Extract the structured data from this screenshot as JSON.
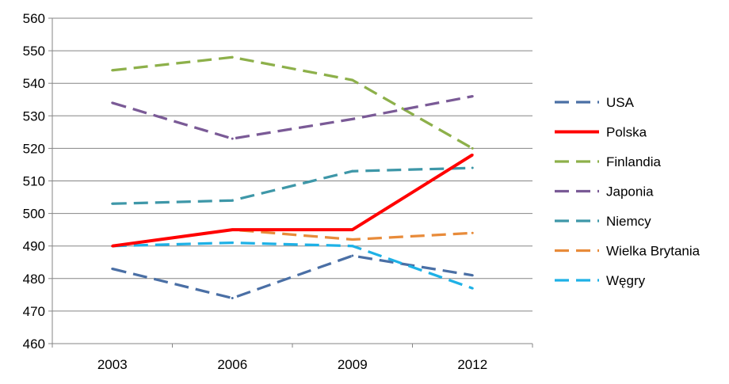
{
  "chart_data": {
    "type": "line",
    "categories": [
      "2003",
      "2006",
      "2009",
      "2012"
    ],
    "ylim": [
      460,
      560
    ],
    "yticks": [
      460,
      470,
      480,
      490,
      500,
      510,
      520,
      530,
      540,
      550,
      560
    ],
    "grid": "horizontal",
    "legend_position": "right",
    "series": [
      {
        "name": "USA",
        "values": [
          483,
          474,
          487,
          481
        ],
        "color": "#4a6fa5",
        "dashed": true
      },
      {
        "name": "Polska",
        "values": [
          490,
          495,
          495,
          518
        ],
        "color": "#ff0000",
        "dashed": false
      },
      {
        "name": "Finlandia",
        "values": [
          544,
          548,
          541,
          520
        ],
        "color": "#8db04a",
        "dashed": true
      },
      {
        "name": "Japonia",
        "values": [
          534,
          523,
          529,
          536
        ],
        "color": "#7a5a96",
        "dashed": true
      },
      {
        "name": "Niemcy",
        "values": [
          503,
          504,
          513,
          514
        ],
        "color": "#3e97a8",
        "dashed": true
      },
      {
        "name": "Wielka Brytania",
        "values": [
          490,
          495,
          492,
          494
        ],
        "color": "#e88b3a",
        "dashed": true
      },
      {
        "name": "Węgry",
        "values": [
          490,
          491,
          490,
          477
        ],
        "color": "#1eb1e6",
        "dashed": true
      }
    ]
  }
}
